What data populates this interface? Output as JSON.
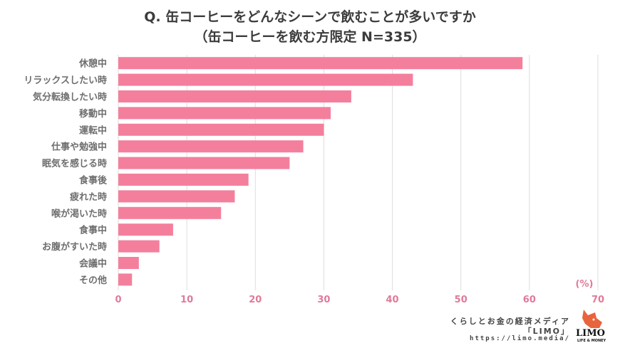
{
  "chart_data": {
    "type": "bar",
    "orientation": "horizontal",
    "title": "Q. 缶コーヒーをどんなシーンで飲むことが多いですか",
    "subtitle": "（缶コーヒーを飲む方限定 N=335）",
    "xlabel": "",
    "ylabel": "",
    "unit_label": "(%)",
    "categories": [
      "休憩中",
      "リラックスしたい時",
      "気分転換したい時",
      "移動中",
      "運転中",
      "仕事や勉強中",
      "眠気を感じる時",
      "食事後",
      "疲れた時",
      "喉が渇いた時",
      "食事中",
      "お腹がすいた時",
      "会議中",
      "その他"
    ],
    "values": [
      59,
      43,
      34,
      31,
      30,
      27,
      25,
      19,
      17,
      15,
      8,
      6,
      3,
      2
    ],
    "xlim": [
      0,
      70
    ],
    "x_ticks": [
      0,
      10,
      20,
      30,
      40,
      50,
      60,
      70
    ],
    "grid": true,
    "bar_color": "#f47f9c",
    "tick_color": "#e07a98"
  },
  "credit": {
    "line1": "くらしとお金の経済メディア",
    "line2": "「LIMO」",
    "url": "https://limo.media/",
    "logo_text": "LIMO",
    "logo_sub": "LIFE & MONEY",
    "logo_color": "#e8643c"
  }
}
